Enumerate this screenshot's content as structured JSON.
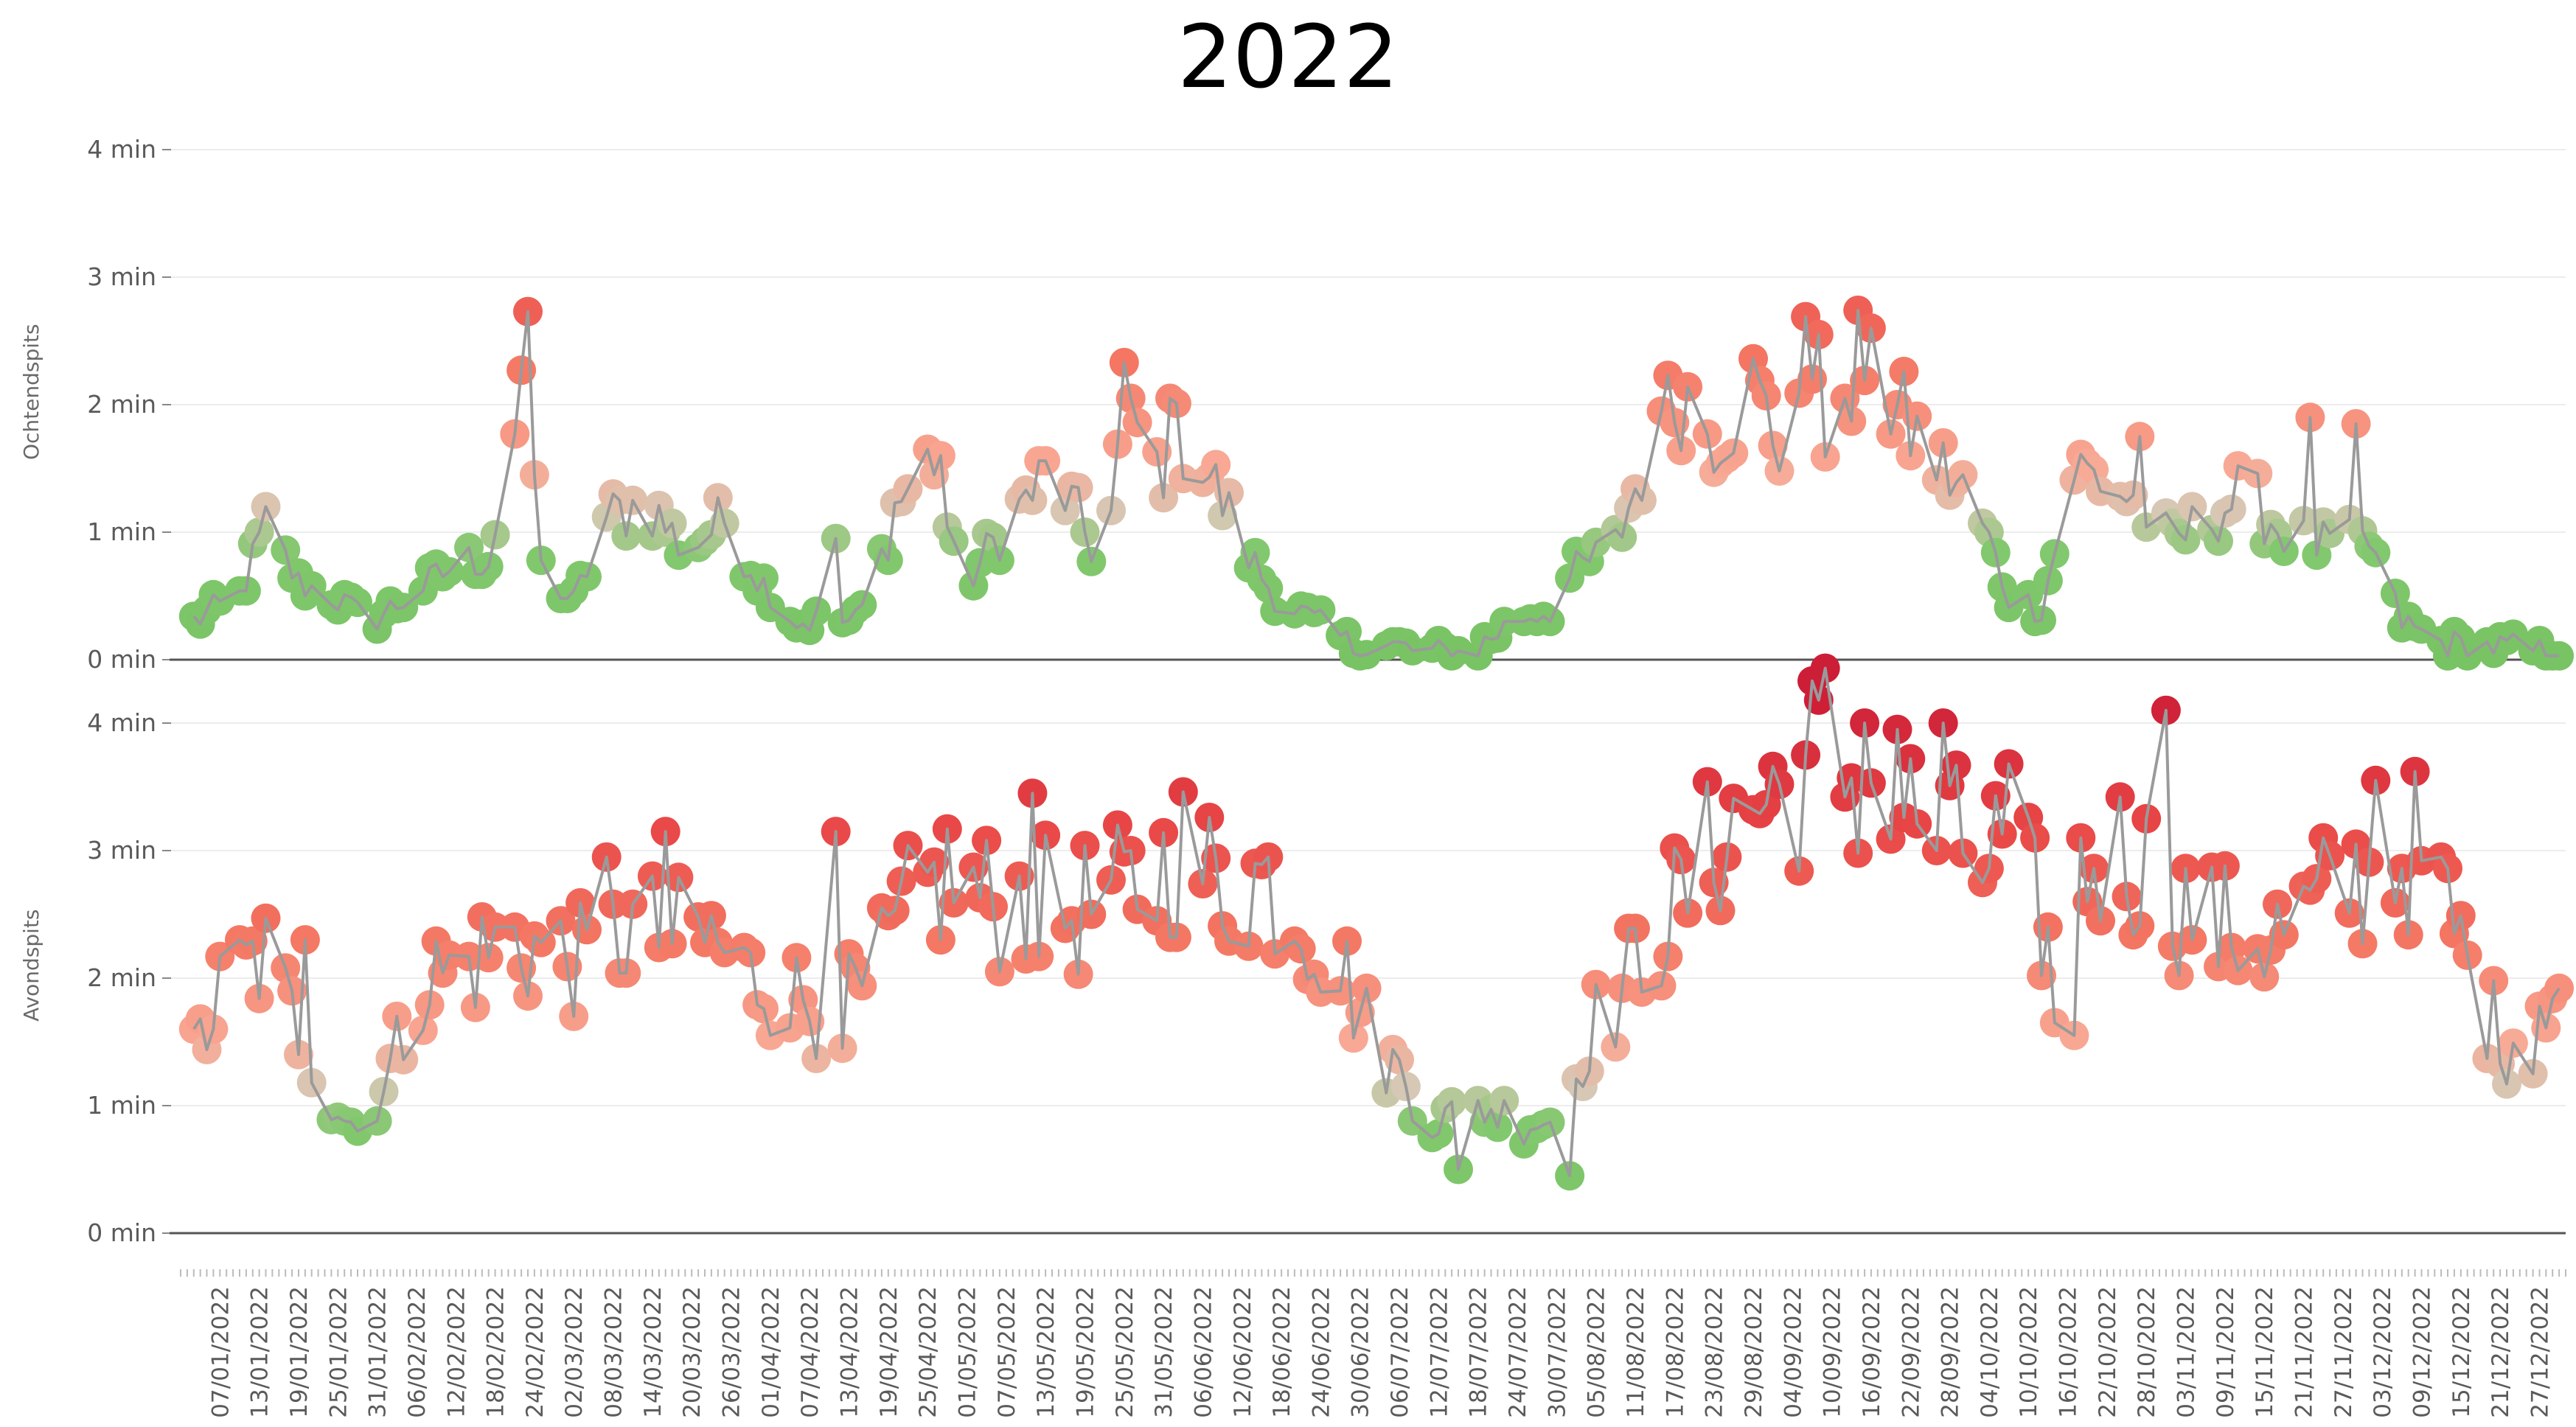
{
  "title": "2022",
  "chart_data": {
    "type": "line",
    "title": "2022",
    "year": 2022,
    "y_unit": "min",
    "ylim": [
      0,
      4.2
    ],
    "y_ticks": [
      0,
      1,
      2,
      3,
      4
    ],
    "y_tick_labels": [
      "0 min",
      "1 min",
      "2 min",
      "3 min",
      "4 min"
    ],
    "x_tick_labels": [
      "07/01/2022",
      "13/01/2022",
      "19/01/2022",
      "25/01/2022",
      "31/01/2022",
      "06/02/2022",
      "12/02/2022",
      "18/02/2022",
      "24/02/2022",
      "02/03/2022",
      "08/03/2022",
      "14/03/2022",
      "20/03/2022",
      "26/03/2022",
      "01/04/2022",
      "07/04/2022",
      "13/04/2022",
      "19/04/2022",
      "25/04/2022",
      "01/05/2022",
      "07/05/2022",
      "13/05/2022",
      "19/05/2022",
      "25/05/2022",
      "31/05/2022",
      "06/06/2022",
      "12/06/2022",
      "18/06/2022",
      "24/06/2022",
      "30/06/2022",
      "06/07/2022",
      "12/07/2022",
      "18/07/2022",
      "24/07/2022",
      "30/07/2022",
      "05/08/2022",
      "11/08/2022",
      "17/08/2022",
      "23/08/2022",
      "29/08/2022",
      "04/09/2022",
      "10/09/2022",
      "16/09/2022",
      "22/09/2022",
      "28/09/2022",
      "04/10/2022",
      "10/10/2022",
      "16/10/2022",
      "22/10/2022",
      "28/10/2022",
      "03/11/2022",
      "09/11/2022",
      "15/11/2022",
      "21/11/2022",
      "27/11/2022",
      "03/12/2022",
      "09/12/2022",
      "15/12/2022",
      "21/12/2022",
      "27/12/2022"
    ],
    "grid": true,
    "legend": "none",
    "series": [
      {
        "name": "Ochtendspits",
        "anchors": [
          [
            3,
            0.3
          ],
          [
            10,
            0.5
          ],
          [
            14,
            1.05
          ],
          [
            19,
            0.6
          ],
          [
            24,
            0.5
          ],
          [
            30,
            0.3
          ],
          [
            36,
            0.5
          ],
          [
            43,
            0.75
          ],
          [
            48,
            0.8
          ],
          [
            54,
            2.25
          ],
          [
            56,
            0.7
          ],
          [
            61,
            0.45
          ],
          [
            66,
            1.1
          ],
          [
            72,
            1.25
          ],
          [
            78,
            0.85
          ],
          [
            84,
            1.1
          ],
          [
            89,
            0.65
          ],
          [
            95,
            0.3
          ],
          [
            104,
            0.3
          ],
          [
            107,
            0.6
          ],
          [
            110,
            1.2
          ],
          [
            116,
            1.6
          ],
          [
            120,
            0.5
          ],
          [
            126,
            1.0
          ],
          [
            134,
            1.5
          ],
          [
            142,
            0.7
          ],
          [
            145,
            2.0
          ],
          [
            150,
            1.5
          ],
          [
            155,
            1.8
          ],
          [
            163,
            0.9
          ],
          [
            168,
            0.5
          ],
          [
            174,
            0.3
          ],
          [
            180,
            0.1
          ],
          [
            186,
            0.1
          ],
          [
            192,
            0.05
          ],
          [
            198,
            0.05
          ],
          [
            204,
            0.3
          ],
          [
            210,
            0.4
          ],
          [
            214,
            0.7
          ],
          [
            220,
            0.9
          ],
          [
            224,
            1.5
          ],
          [
            230,
            2.1
          ],
          [
            235,
            1.8
          ],
          [
            241,
            2.1
          ],
          [
            245,
            1.7
          ],
          [
            250,
            2.4
          ],
          [
            254,
            1.5
          ],
          [
            258,
            2.5
          ],
          [
            262,
            2.0
          ],
          [
            268,
            1.6
          ],
          [
            275,
            1.2
          ],
          [
            280,
            0.5
          ],
          [
            285,
            0.4
          ],
          [
            290,
            1.5
          ],
          [
            295,
            1.4
          ],
          [
            300,
            1.2
          ],
          [
            305,
            0.9
          ],
          [
            310,
            1.1
          ],
          [
            316,
            1.3
          ],
          [
            322,
            1.0
          ],
          [
            326,
            0.9
          ],
          [
            330,
            0.9
          ],
          [
            335,
            0.9
          ],
          [
            340,
            0.3
          ],
          [
            345,
            0.15
          ],
          [
            350,
            0.1
          ],
          [
            355,
            0.1
          ],
          [
            362,
            0.05
          ]
        ],
        "spikes": [
          [
            53,
            2.27
          ],
          [
            57,
            1.0
          ],
          [
            101,
            0.95
          ],
          [
            117,
            1.6
          ],
          [
            121,
            1.55
          ],
          [
            146,
            2.05
          ],
          [
            152,
            2.05
          ],
          [
            170,
            0.8
          ],
          [
            227,
            1.95
          ],
          [
            251,
            2.55
          ],
          [
            259,
            2.6
          ],
          [
            281,
            0.7
          ],
          [
            300,
            1.75
          ],
          [
            326,
            1.9
          ],
          [
            333,
            1.85
          ]
        ]
      },
      {
        "name": "Avondspits",
        "anchors": [
          [
            3,
            1.35
          ],
          [
            8,
            2.0
          ],
          [
            14,
            2.15
          ],
          [
            18,
            1.7
          ],
          [
            24,
            1.1
          ],
          [
            28,
            0.8
          ],
          [
            33,
            1.3
          ],
          [
            38,
            2.0
          ],
          [
            45,
            2.1
          ],
          [
            50,
            2.3
          ],
          [
            58,
            2.2
          ],
          [
            63,
            2.1
          ],
          [
            70,
            2.4
          ],
          [
            76,
            2.3
          ],
          [
            82,
            2.3
          ],
          [
            88,
            2.0
          ],
          [
            94,
            1.9
          ],
          [
            100,
            1.7
          ],
          [
            106,
            1.9
          ],
          [
            112,
            2.5
          ],
          [
            118,
            2.8
          ],
          [
            124,
            2.6
          ],
          [
            130,
            2.6
          ],
          [
            136,
            2.5
          ],
          [
            142,
            2.6
          ],
          [
            148,
            2.7
          ],
          [
            154,
            3.0
          ],
          [
            160,
            2.7
          ],
          [
            166,
            2.8
          ],
          [
            172,
            2.5
          ],
          [
            178,
            2.1
          ],
          [
            183,
            1.5
          ],
          [
            188,
            1.2
          ],
          [
            192,
            0.9
          ],
          [
            196,
            0.9
          ],
          [
            200,
            1.0
          ],
          [
            204,
            0.9
          ],
          [
            208,
            0.9
          ],
          [
            212,
            0.9
          ],
          [
            216,
            1.6
          ],
          [
            220,
            1.8
          ],
          [
            225,
            2.3
          ],
          [
            230,
            2.6
          ],
          [
            236,
            3.1
          ],
          [
            240,
            3.3
          ],
          [
            246,
            3.5
          ],
          [
            252,
            3.8
          ],
          [
            258,
            3.5
          ],
          [
            264,
            3.3
          ],
          [
            270,
            3.1
          ],
          [
            276,
            2.9
          ],
          [
            280,
            3.1
          ],
          [
            286,
            2.3
          ],
          [
            290,
            2.8
          ],
          [
            296,
            3.0
          ],
          [
            302,
            2.8
          ],
          [
            306,
            2.6
          ],
          [
            312,
            2.4
          ],
          [
            318,
            2.3
          ],
          [
            324,
            2.4
          ],
          [
            330,
            2.7
          ],
          [
            336,
            2.8
          ],
          [
            342,
            3.0
          ],
          [
            348,
            2.4
          ],
          [
            352,
            1.8
          ],
          [
            356,
            1.5
          ],
          [
            362,
            1.95
          ]
        ],
        "spikes": [
          [
            20,
            2.3
          ],
          [
            66,
            2.95
          ],
          [
            75,
            3.15
          ],
          [
            92,
            2.95
          ],
          [
            101,
            3.15
          ],
          [
            131,
            3.45
          ],
          [
            141,
            3.35
          ],
          [
            162,
            3.6
          ],
          [
            177,
            3.25
          ],
          [
            196,
            0.5
          ],
          [
            205,
            0.47
          ],
          [
            213,
            0.45
          ],
          [
            258,
            4.0
          ],
          [
            263,
            3.95
          ],
          [
            270,
            4.0
          ],
          [
            287,
            1.65
          ],
          [
            290,
            1.55
          ],
          [
            304,
            4.1
          ],
          [
            336,
            3.55
          ],
          [
            345,
            3.4
          ],
          [
            360,
            1.25
          ]
        ]
      }
    ]
  }
}
